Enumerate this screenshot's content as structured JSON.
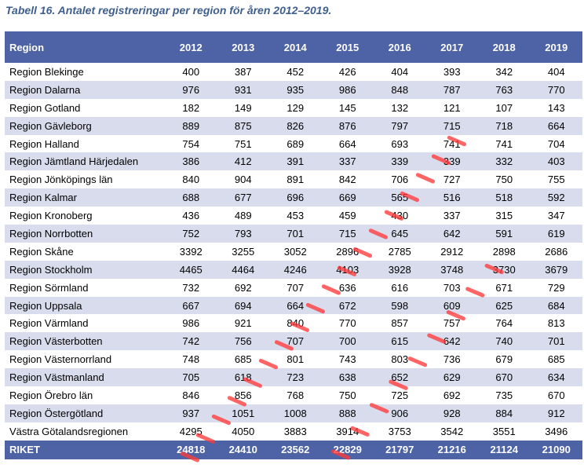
{
  "caption": "Tabell 16. Antalet registreringar per region för åren 2012–2019.",
  "colors": {
    "header_bg": "#4e63a6",
    "stripe_bg": "#d9dcec",
    "caption_color": "#3f5f8f",
    "watermark_color": "#ff3a3a"
  },
  "table": {
    "region_header": "Region",
    "years": [
      "2012",
      "2013",
      "2014",
      "2015",
      "2016",
      "2017",
      "2018",
      "2019"
    ],
    "rows": [
      {
        "region": "Region Blekinge",
        "values": [
          400,
          387,
          452,
          426,
          404,
          393,
          342,
          404
        ]
      },
      {
        "region": "Region Dalarna",
        "values": [
          976,
          931,
          935,
          986,
          848,
          787,
          763,
          770
        ]
      },
      {
        "region": "Region Gotland",
        "values": [
          182,
          149,
          129,
          145,
          132,
          121,
          107,
          143
        ]
      },
      {
        "region": "Region Gävleborg",
        "values": [
          889,
          875,
          826,
          876,
          797,
          715,
          718,
          664
        ]
      },
      {
        "region": "Region Halland",
        "values": [
          754,
          751,
          689,
          664,
          693,
          741,
          741,
          704
        ]
      },
      {
        "region": "Region Jämtland Härjedalen",
        "values": [
          386,
          412,
          391,
          337,
          339,
          339,
          332,
          403
        ]
      },
      {
        "region": "Region Jönköpings län",
        "values": [
          840,
          904,
          891,
          842,
          706,
          727,
          750,
          755
        ]
      },
      {
        "region": "Region Kalmar",
        "values": [
          688,
          677,
          696,
          669,
          565,
          516,
          518,
          592
        ]
      },
      {
        "region": "Region Kronoberg",
        "values": [
          436,
          489,
          453,
          459,
          430,
          337,
          315,
          347
        ]
      },
      {
        "region": "Region Norrbotten",
        "values": [
          752,
          793,
          701,
          715,
          645,
          642,
          591,
          619
        ]
      },
      {
        "region": "Region Skåne",
        "values": [
          3392,
          3255,
          3052,
          2896,
          2785,
          2912,
          2898,
          2686
        ]
      },
      {
        "region": "Region Stockholm",
        "values": [
          4465,
          4464,
          4246,
          4103,
          3928,
          3748,
          3730,
          3679
        ]
      },
      {
        "region": "Region Sörmland",
        "values": [
          732,
          692,
          707,
          636,
          616,
          703,
          671,
          729
        ]
      },
      {
        "region": "Region Uppsala",
        "values": [
          667,
          694,
          664,
          672,
          598,
          609,
          625,
          684
        ]
      },
      {
        "region": "Region Värmland",
        "values": [
          986,
          921,
          840,
          770,
          857,
          757,
          764,
          813
        ]
      },
      {
        "region": "Region Västerbotten",
        "values": [
          742,
          756,
          707,
          700,
          615,
          642,
          740,
          701
        ]
      },
      {
        "region": "Region Västernorrland",
        "values": [
          748,
          685,
          801,
          743,
          803,
          736,
          679,
          685
        ]
      },
      {
        "region": "Region Västmanland",
        "values": [
          705,
          618,
          723,
          638,
          652,
          629,
          670,
          634
        ]
      },
      {
        "region": "Region Örebro län",
        "values": [
          846,
          856,
          768,
          750,
          725,
          692,
          735,
          670
        ]
      },
      {
        "region": "Region Östergötland",
        "values": [
          937,
          1051,
          1008,
          888,
          906,
          928,
          884,
          912
        ]
      },
      {
        "region": "Västra Götalandsregionen",
        "values": [
          4295,
          4050,
          3883,
          3914,
          3753,
          3542,
          3551,
          3496
        ]
      }
    ],
    "total": {
      "region": "RIKET",
      "values": [
        24818,
        24410,
        23562,
        22829,
        21797,
        21216,
        21124,
        21090
      ]
    }
  }
}
